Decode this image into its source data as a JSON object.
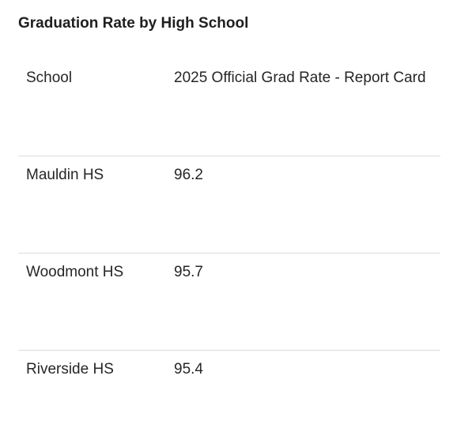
{
  "title": "Graduation Rate by High School",
  "table": {
    "headers": [
      "School",
      "2025 Official Grad Rate - Report Card"
    ],
    "rows": [
      [
        "Mauldin HS",
        "96.2"
      ],
      [
        "Woodmont HS",
        "95.7"
      ],
      [
        "Riverside HS",
        "95.4"
      ]
    ]
  }
}
